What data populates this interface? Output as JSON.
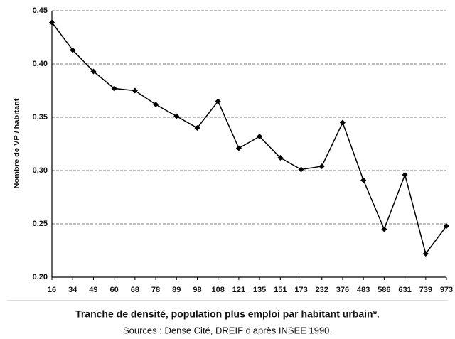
{
  "chart_data": {
    "type": "line",
    "ylabel": "Nombre de VP / habitant",
    "xlabel": "Tranche de densité, population plus emploi par habitant urbain*.",
    "source": "Sources : Dense Cité, DREIF d’après INSEE 1990.",
    "categories": [
      "16",
      "34",
      "49",
      "60",
      "68",
      "78",
      "89",
      "98",
      "108",
      "121",
      "135",
      "151",
      "173",
      "232",
      "376",
      "483",
      "586",
      "631",
      "739",
      "973"
    ],
    "values": [
      0.439,
      0.413,
      0.393,
      0.377,
      0.375,
      0.362,
      0.351,
      0.34,
      0.365,
      0.321,
      0.332,
      0.312,
      0.301,
      0.304,
      0.345,
      0.291,
      0.245,
      0.296,
      0.222,
      0.248
    ],
    "color": "#000000",
    "ylim": [
      0.2,
      0.45
    ],
    "yticks": [
      {
        "value": 0.2,
        "label": "0,20"
      },
      {
        "value": 0.25,
        "label": "0,25"
      },
      {
        "value": 0.3,
        "label": "0,30"
      },
      {
        "value": 0.35,
        "label": "0,35"
      },
      {
        "value": 0.4,
        "label": "0,40"
      },
      {
        "value": 0.45,
        "label": "0,45"
      }
    ],
    "grid": true
  }
}
